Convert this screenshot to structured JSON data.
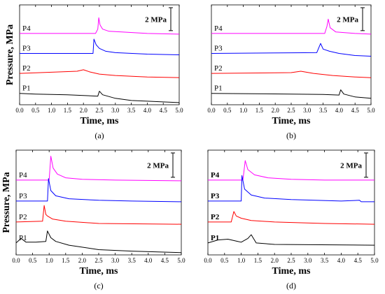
{
  "chart_data": [
    {
      "type": "line",
      "caption": "(a)",
      "xlabel": "Time, ms",
      "ylabel": "Pressure, MPa",
      "xlim": [
        0,
        5
      ],
      "xticks": [
        "0.0",
        "0.5",
        "1.0",
        "1.5",
        "2.0",
        "2.5",
        "3.0",
        "3.5",
        "4.0",
        "4.5",
        "5.0"
      ],
      "scale_bar": "2 MPa",
      "bold_labels": false,
      "series": [
        {
          "name": "P4",
          "color": "#ff00ff",
          "baseline": 5.0,
          "points": [
            [
              0,
              5.0
            ],
            [
              2.38,
              5.0
            ],
            [
              2.45,
              5.3
            ],
            [
              2.48,
              6.1
            ],
            [
              2.52,
              5.6
            ],
            [
              2.6,
              5.3
            ],
            [
              2.8,
              5.15
            ],
            [
              3.2,
              5.1
            ],
            [
              4.0,
              5.0
            ],
            [
              5.0,
              4.95
            ]
          ]
        },
        {
          "name": "P3",
          "color": "#0000ff",
          "baseline": 3.6,
          "points": [
            [
              0,
              3.6
            ],
            [
              2.3,
              3.6
            ],
            [
              2.33,
              4.6
            ],
            [
              2.4,
              4.2
            ],
            [
              2.5,
              3.95
            ],
            [
              2.7,
              3.75
            ],
            [
              3.0,
              3.65
            ],
            [
              4.0,
              3.55
            ],
            [
              5.0,
              3.5
            ]
          ]
        },
        {
          "name": "P2",
          "color": "#ff0000",
          "baseline": 2.2,
          "points": [
            [
              0,
              2.2
            ],
            [
              1.8,
              2.35
            ],
            [
              2.0,
              2.45
            ],
            [
              2.2,
              2.3
            ],
            [
              2.5,
              2.15
            ],
            [
              3.0,
              2.05
            ],
            [
              4.0,
              1.95
            ],
            [
              5.0,
              1.9
            ]
          ]
        },
        {
          "name": "P1",
          "color": "#000000",
          "baseline": 0.8,
          "points": [
            [
              0,
              0.8
            ],
            [
              0.5,
              0.75
            ],
            [
              1.5,
              0.7
            ],
            [
              2.45,
              0.6
            ],
            [
              2.5,
              0.95
            ],
            [
              2.6,
              0.7
            ],
            [
              3.0,
              0.45
            ],
            [
              3.5,
              0.3
            ],
            [
              4.0,
              0.25
            ],
            [
              5.0,
              0.15
            ]
          ]
        }
      ]
    },
    {
      "type": "line",
      "caption": "(b)",
      "xlabel": "Time, ms",
      "ylabel": "",
      "xlim": [
        0,
        5
      ],
      "xticks": [
        "0.0",
        "0.5",
        "1.0",
        "1.5",
        "2.0",
        "2.5",
        "3.0",
        "3.5",
        "4.0",
        "4.5",
        "5.0"
      ],
      "scale_bar": "2 MPa",
      "bold_labels": false,
      "series": [
        {
          "name": "P4",
          "color": "#ff00ff",
          "baseline": 5.0,
          "points": [
            [
              0,
              5.0
            ],
            [
              3.55,
              5.0
            ],
            [
              3.62,
              5.5
            ],
            [
              3.66,
              6.0
            ],
            [
              3.72,
              5.4
            ],
            [
              3.9,
              5.1
            ],
            [
              4.5,
              5.0
            ],
            [
              5.0,
              4.95
            ]
          ]
        },
        {
          "name": "P3",
          "color": "#0000ff",
          "baseline": 3.6,
          "points": [
            [
              0,
              3.6
            ],
            [
              3.3,
              3.65
            ],
            [
              3.42,
              4.3
            ],
            [
              3.5,
              3.9
            ],
            [
              3.7,
              3.75
            ],
            [
              4.0,
              3.6
            ],
            [
              4.5,
              3.45
            ],
            [
              5.0,
              3.4
            ]
          ]
        },
        {
          "name": "P2",
          "color": "#ff0000",
          "baseline": 2.2,
          "points": [
            [
              0,
              2.2
            ],
            [
              2.5,
              2.25
            ],
            [
              2.8,
              2.35
            ],
            [
              3.2,
              2.2
            ],
            [
              3.8,
              2.05
            ],
            [
              4.5,
              1.95
            ],
            [
              5.0,
              1.9
            ]
          ]
        },
        {
          "name": "P1",
          "color": "#000000",
          "baseline": 0.8,
          "points": [
            [
              0,
              0.8
            ],
            [
              1.0,
              0.78
            ],
            [
              2.5,
              0.75
            ],
            [
              3.5,
              0.72
            ],
            [
              4.0,
              0.68
            ],
            [
              4.05,
              1.05
            ],
            [
              4.15,
              0.75
            ],
            [
              4.5,
              0.55
            ],
            [
              5.0,
              0.45
            ]
          ]
        }
      ]
    },
    {
      "type": "line",
      "caption": "(c)",
      "xlabel": "Time, ms",
      "ylabel": "Pressure, MPa",
      "xlim": [
        0,
        5
      ],
      "xticks": [
        "0.0",
        "0.5",
        "1.0",
        "1.5",
        "2.0",
        "2.5",
        "3.0",
        "3.5",
        "4.0",
        "4.5",
        "5.0"
      ],
      "scale_bar": "2 MPa",
      "bold_labels": false,
      "series": [
        {
          "name": "P4",
          "color": "#ff00ff",
          "baseline": 5.0,
          "points": [
            [
              0,
              5.0
            ],
            [
              1.0,
              5.0
            ],
            [
              1.05,
              6.6
            ],
            [
              1.12,
              5.8
            ],
            [
              1.25,
              5.4
            ],
            [
              1.5,
              5.15
            ],
            [
              2.0,
              5.05
            ],
            [
              3.0,
              5.0
            ],
            [
              5.0,
              4.95
            ]
          ]
        },
        {
          "name": "P3",
          "color": "#0000ff",
          "baseline": 3.6,
          "points": [
            [
              0,
              3.6
            ],
            [
              0.95,
              3.6
            ],
            [
              0.98,
              5.1
            ],
            [
              1.05,
              4.3
            ],
            [
              1.2,
              3.95
            ],
            [
              1.6,
              3.75
            ],
            [
              2.5,
              3.65
            ],
            [
              3.5,
              3.6
            ],
            [
              5.0,
              3.55
            ]
          ]
        },
        {
          "name": "P2",
          "color": "#ff0000",
          "baseline": 2.2,
          "points": [
            [
              0,
              2.2
            ],
            [
              0.8,
              2.25
            ],
            [
              0.85,
              3.3
            ],
            [
              0.9,
              2.7
            ],
            [
              0.95,
              2.6
            ],
            [
              1.1,
              2.4
            ],
            [
              1.5,
              2.25
            ],
            [
              2.5,
              2.1
            ],
            [
              5.0,
              2.05
            ]
          ]
        },
        {
          "name": "P1",
          "color": "#000000",
          "baseline": 0.8,
          "points": [
            [
              0,
              0.8
            ],
            [
              0.15,
              1.1
            ],
            [
              0.3,
              0.85
            ],
            [
              0.6,
              0.85
            ],
            [
              0.9,
              0.9
            ],
            [
              0.95,
              1.6
            ],
            [
              1.05,
              1.15
            ],
            [
              1.2,
              0.9
            ],
            [
              1.6,
              0.65
            ],
            [
              2.5,
              0.35
            ],
            [
              3.5,
              0.25
            ],
            [
              5.0,
              0.15
            ]
          ]
        }
      ]
    },
    {
      "type": "line",
      "caption": "(d)",
      "xlabel": "Time, ms",
      "ylabel": "",
      "xlim": [
        0,
        5
      ],
      "xticks": [
        "0.0",
        "0.5",
        "1.0",
        "1.5",
        "2.0",
        "2.5",
        "3.0",
        "3.5",
        "4.0",
        "4.5",
        "5.0"
      ],
      "scale_bar": "2 MPa",
      "bold_labels": true,
      "series": [
        {
          "name": "P4",
          "color": "#ff00ff",
          "baseline": 5.0,
          "points": [
            [
              0,
              5.0
            ],
            [
              1.05,
              5.0
            ],
            [
              1.12,
              6.3
            ],
            [
              1.2,
              5.7
            ],
            [
              1.4,
              5.35
            ],
            [
              1.8,
              5.15
            ],
            [
              2.5,
              5.05
            ],
            [
              3.5,
              5.0
            ],
            [
              5.0,
              5.0
            ]
          ]
        },
        {
          "name": "P3",
          "color": "#0000ff",
          "baseline": 3.6,
          "points": [
            [
              0,
              3.6
            ],
            [
              1.0,
              3.6
            ],
            [
              1.02,
              5.3
            ],
            [
              1.1,
              4.4
            ],
            [
              1.3,
              4.0
            ],
            [
              1.7,
              3.8
            ],
            [
              2.5,
              3.7
            ],
            [
              4.0,
              3.6
            ],
            [
              4.55,
              3.65
            ],
            [
              4.6,
              3.55
            ],
            [
              5.0,
              3.55
            ]
          ]
        },
        {
          "name": "P2",
          "color": "#ff0000",
          "baseline": 2.2,
          "points": [
            [
              0,
              2.2
            ],
            [
              0.7,
              2.2
            ],
            [
              0.78,
              2.9
            ],
            [
              0.85,
              2.6
            ],
            [
              1.0,
              2.45
            ],
            [
              1.3,
              2.3
            ],
            [
              2.0,
              2.2
            ],
            [
              3.5,
              2.1
            ],
            [
              5.0,
              2.05
            ]
          ]
        },
        {
          "name": "P1",
          "color": "#000000",
          "baseline": 0.8,
          "points": [
            [
              0,
              0.8
            ],
            [
              0.3,
              1.0
            ],
            [
              0.6,
              1.05
            ],
            [
              0.9,
              0.9
            ],
            [
              1.0,
              0.85
            ],
            [
              1.2,
              1.1
            ],
            [
              1.3,
              1.35
            ],
            [
              1.45,
              0.8
            ],
            [
              2.0,
              0.7
            ],
            [
              5.0,
              0.65
            ]
          ]
        }
      ]
    }
  ]
}
